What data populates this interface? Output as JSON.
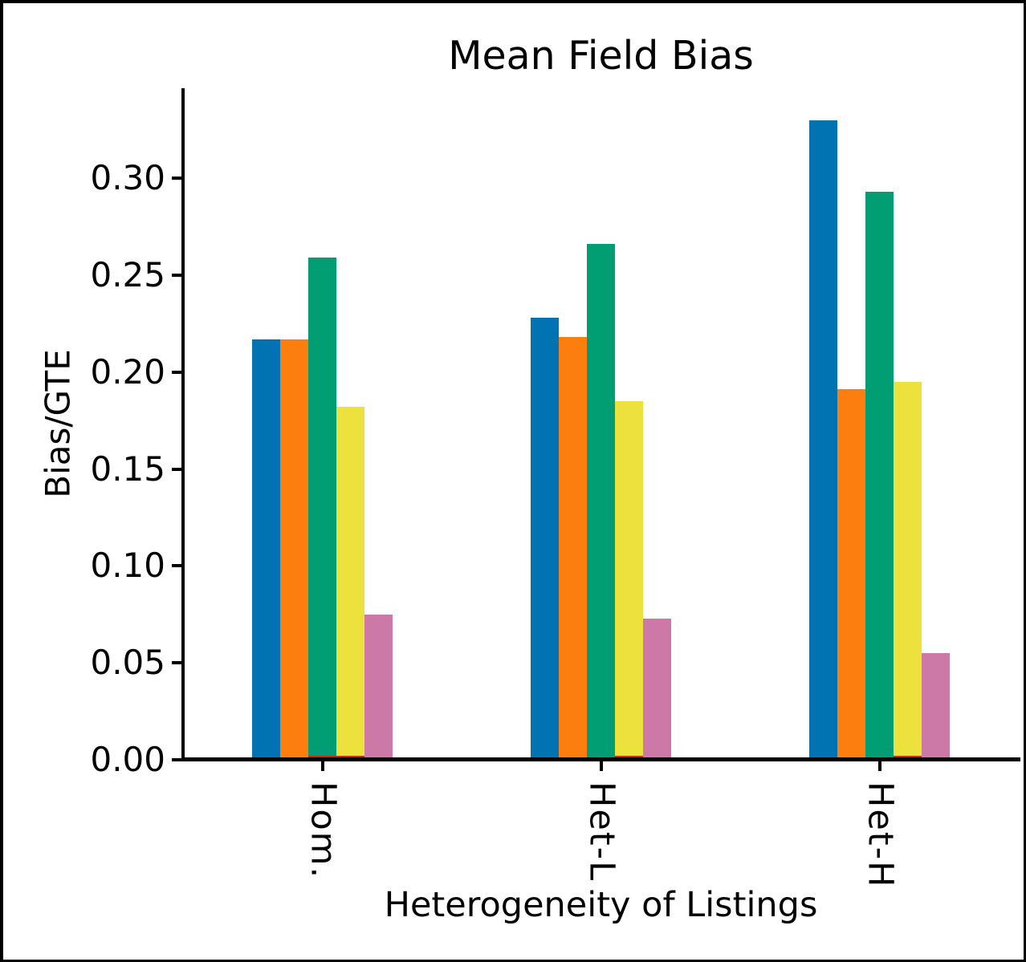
{
  "chart_data": {
    "type": "bar",
    "title": "Mean Field Bias",
    "xlabel": "Heterogeneity of Listings",
    "ylabel": "Bias/GTE",
    "categories": [
      "Hom.",
      "Het-L",
      "Het-H"
    ],
    "series": [
      {
        "name": "blue",
        "color": "#0173B2",
        "values": [
          0.217,
          0.228,
          0.33
        ]
      },
      {
        "name": "orange",
        "color": "#FC7E0F",
        "values": [
          0.217,
          0.218,
          0.191
        ]
      },
      {
        "name": "green",
        "color": "#029E73",
        "values": [
          0.259,
          0.266,
          0.293
        ]
      },
      {
        "name": "yellow",
        "color": "#EDE23D",
        "values": [
          0.182,
          0.185,
          0.195
        ]
      },
      {
        "name": "pink",
        "color": "#CC79A7",
        "values": [
          0.075,
          0.073,
          0.055
        ]
      }
    ],
    "baseline_slivers": [
      {
        "category_index": 0,
        "from_slot": 2,
        "to_slot": 4,
        "value": 0.001,
        "color": "#C62D10"
      },
      {
        "category_index": 1,
        "from_slot": 3,
        "to_slot": 4,
        "value": 0.001,
        "color": "#C62D10"
      },
      {
        "category_index": 2,
        "from_slot": 3,
        "to_slot": 4,
        "value": 0.001,
        "color": "#C62D10"
      }
    ],
    "yticks": [
      0.0,
      0.05,
      0.1,
      0.15,
      0.2,
      0.25,
      0.3
    ],
    "ytick_labels": [
      "0.00",
      "0.05",
      "0.10",
      "0.15",
      "0.20",
      "0.25",
      "0.30"
    ],
    "ylim": [
      0,
      0.3464
    ],
    "axis_color": "#000000",
    "grid": false,
    "legend": "none"
  }
}
